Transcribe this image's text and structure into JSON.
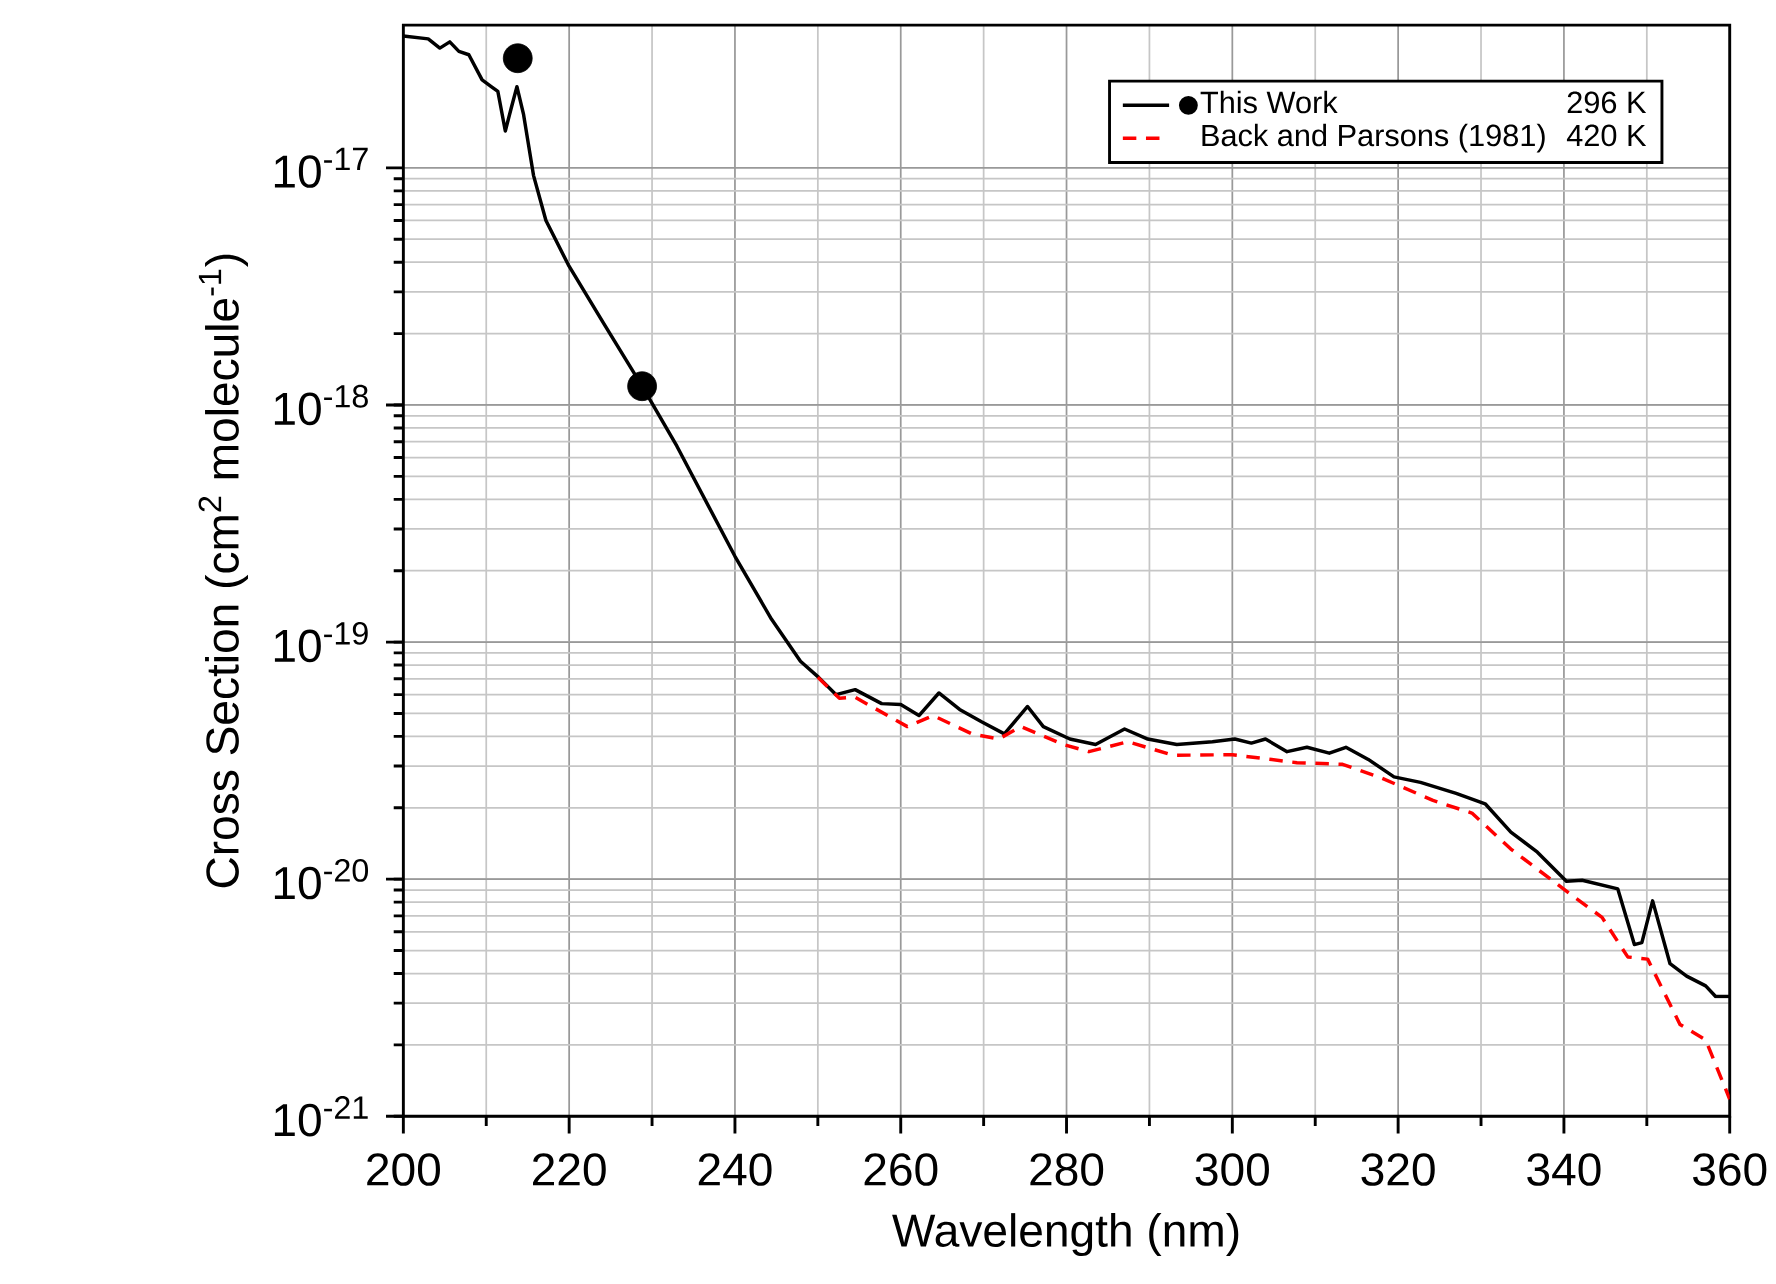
{
  "chart_data": {
    "type": "line",
    "xlabel": "Wavelength (nm)",
    "ylabel": "Cross Section (cm$^{2}$ molecule$^{-1}$)",
    "log": "y",
    "grid": true,
    "legend": "top right",
    "xlim": [
      200,
      360
    ],
    "xticks": [
      200,
      220,
      240,
      260,
      280,
      300,
      320,
      340,
      360
    ],
    "ylim": [
      1e-21,
      4e-17
    ],
    "yticks": [
      {
        "value": 1e-21,
        "label": "10$^{-21}$"
      },
      {
        "value": 1e-20,
        "label": "10$^{-20}$"
      },
      {
        "value": 1e-19,
        "label": "10$^{-19}$"
      },
      {
        "value": 1e-18,
        "label": "10$^{-18}$"
      },
      {
        "value": 1e-17,
        "label": "10$^{-17}$"
      }
    ],
    "annotations": [
      "296 K",
      "420 K"
    ],
    "series": [
      {
        "name": "This Work",
        "color": "#000000",
        "line_style": "solid",
        "x": [
          200,
          203,
          204.4,
          205.6,
          206.7,
          207.9,
          209.5,
          210.6,
          211.4,
          212.3,
          213,
          213.7,
          214.5,
          215.7,
          217.2,
          219.9,
          224.2,
          228.8,
          233,
          240,
          244.4,
          247.9,
          250.1,
          252.2,
          254.5,
          257.7,
          260,
          262.2,
          264.6,
          267.1,
          269.8,
          272.5,
          275.3,
          277.2,
          280.4,
          283.5,
          287,
          289.8,
          293.3,
          297.6,
          300.3,
          302.3,
          304,
          306.6,
          309,
          311.7,
          313.7,
          316.4,
          319.5,
          322.7,
          327,
          330.5,
          333.6,
          336.8,
          340.3,
          342.2,
          346.5,
          348.5,
          349.4,
          350.7,
          352.8,
          354.8,
          357.1,
          358.3,
          360
        ],
        "values": [
          3.6e-17,
          3.5e-17,
          3.2e-17,
          3.4e-17,
          3.1e-17,
          3e-17,
          2.35e-17,
          2.2e-17,
          2.1e-17,
          1.43e-17,
          1.78e-17,
          2.2e-17,
          1.68e-17,
          9.3e-18,
          6e-18,
          3.9e-18,
          2.2e-18,
          1.2e-18,
          6.7e-19,
          2.3e-19,
          1.25e-19,
          8.3e-20,
          7.1e-20,
          6e-20,
          6.3e-20,
          5.5e-20,
          5.45e-20,
          4.9e-20,
          6.1e-20,
          5.2e-20,
          4.6e-20,
          4.1e-20,
          5.35e-20,
          4.4e-20,
          3.9e-20,
          3.7e-20,
          4.3e-20,
          3.9e-20,
          3.7e-20,
          3.8e-20,
          3.9e-20,
          3.75e-20,
          3.9e-20,
          3.45e-20,
          3.6e-20,
          3.4e-20,
          3.6e-20,
          3.2e-20,
          2.7e-20,
          2.56e-20,
          2.3e-20,
          2.08e-20,
          1.58e-20,
          1.3e-20,
          9.8e-21,
          9.9e-21,
          9.1e-21,
          5.3e-21,
          5.4e-21,
          8.1e-21,
          4.4e-21,
          3.9e-21,
          3.55e-21,
          3.2e-21,
          3.2e-21
        ]
      },
      {
        "type": "scatter",
        "color": "#000000",
        "marker": "circle",
        "x": [
          213.8,
          228.8
        ],
        "values": [
          2.9e-17,
          1.2e-18
        ]
      },
      {
        "name": "Back and Parsons (1981)",
        "color": "#ff0000",
        "line_style": "dashed",
        "x": [
          250,
          252.6,
          254.5,
          260.8,
          263.9,
          268.6,
          271.8,
          274.5,
          279.6,
          282.7,
          287.4,
          292.9,
          300,
          307.8,
          313.3,
          318,
          324.2,
          328.9,
          333.6,
          340.3,
          344.6,
          347.7,
          350.1,
          354,
          357.1,
          360
        ],
        "values": [
          7.1e-20,
          5.8e-20,
          5.85e-20,
          4.4e-20,
          4.9e-20,
          4.1e-20,
          3.9e-20,
          4.4e-20,
          3.7e-20,
          3.45e-20,
          3.8e-20,
          3.33e-20,
          3.35e-20,
          3.1e-20,
          3.05e-20,
          2.67e-20,
          2.15e-20,
          1.9e-20,
          1.34e-20,
          8.9e-21,
          6.9e-21,
          4.7e-21,
          4.6e-21,
          2.44e-21,
          2.1e-21,
          1.18e-21
        ]
      }
    ]
  }
}
